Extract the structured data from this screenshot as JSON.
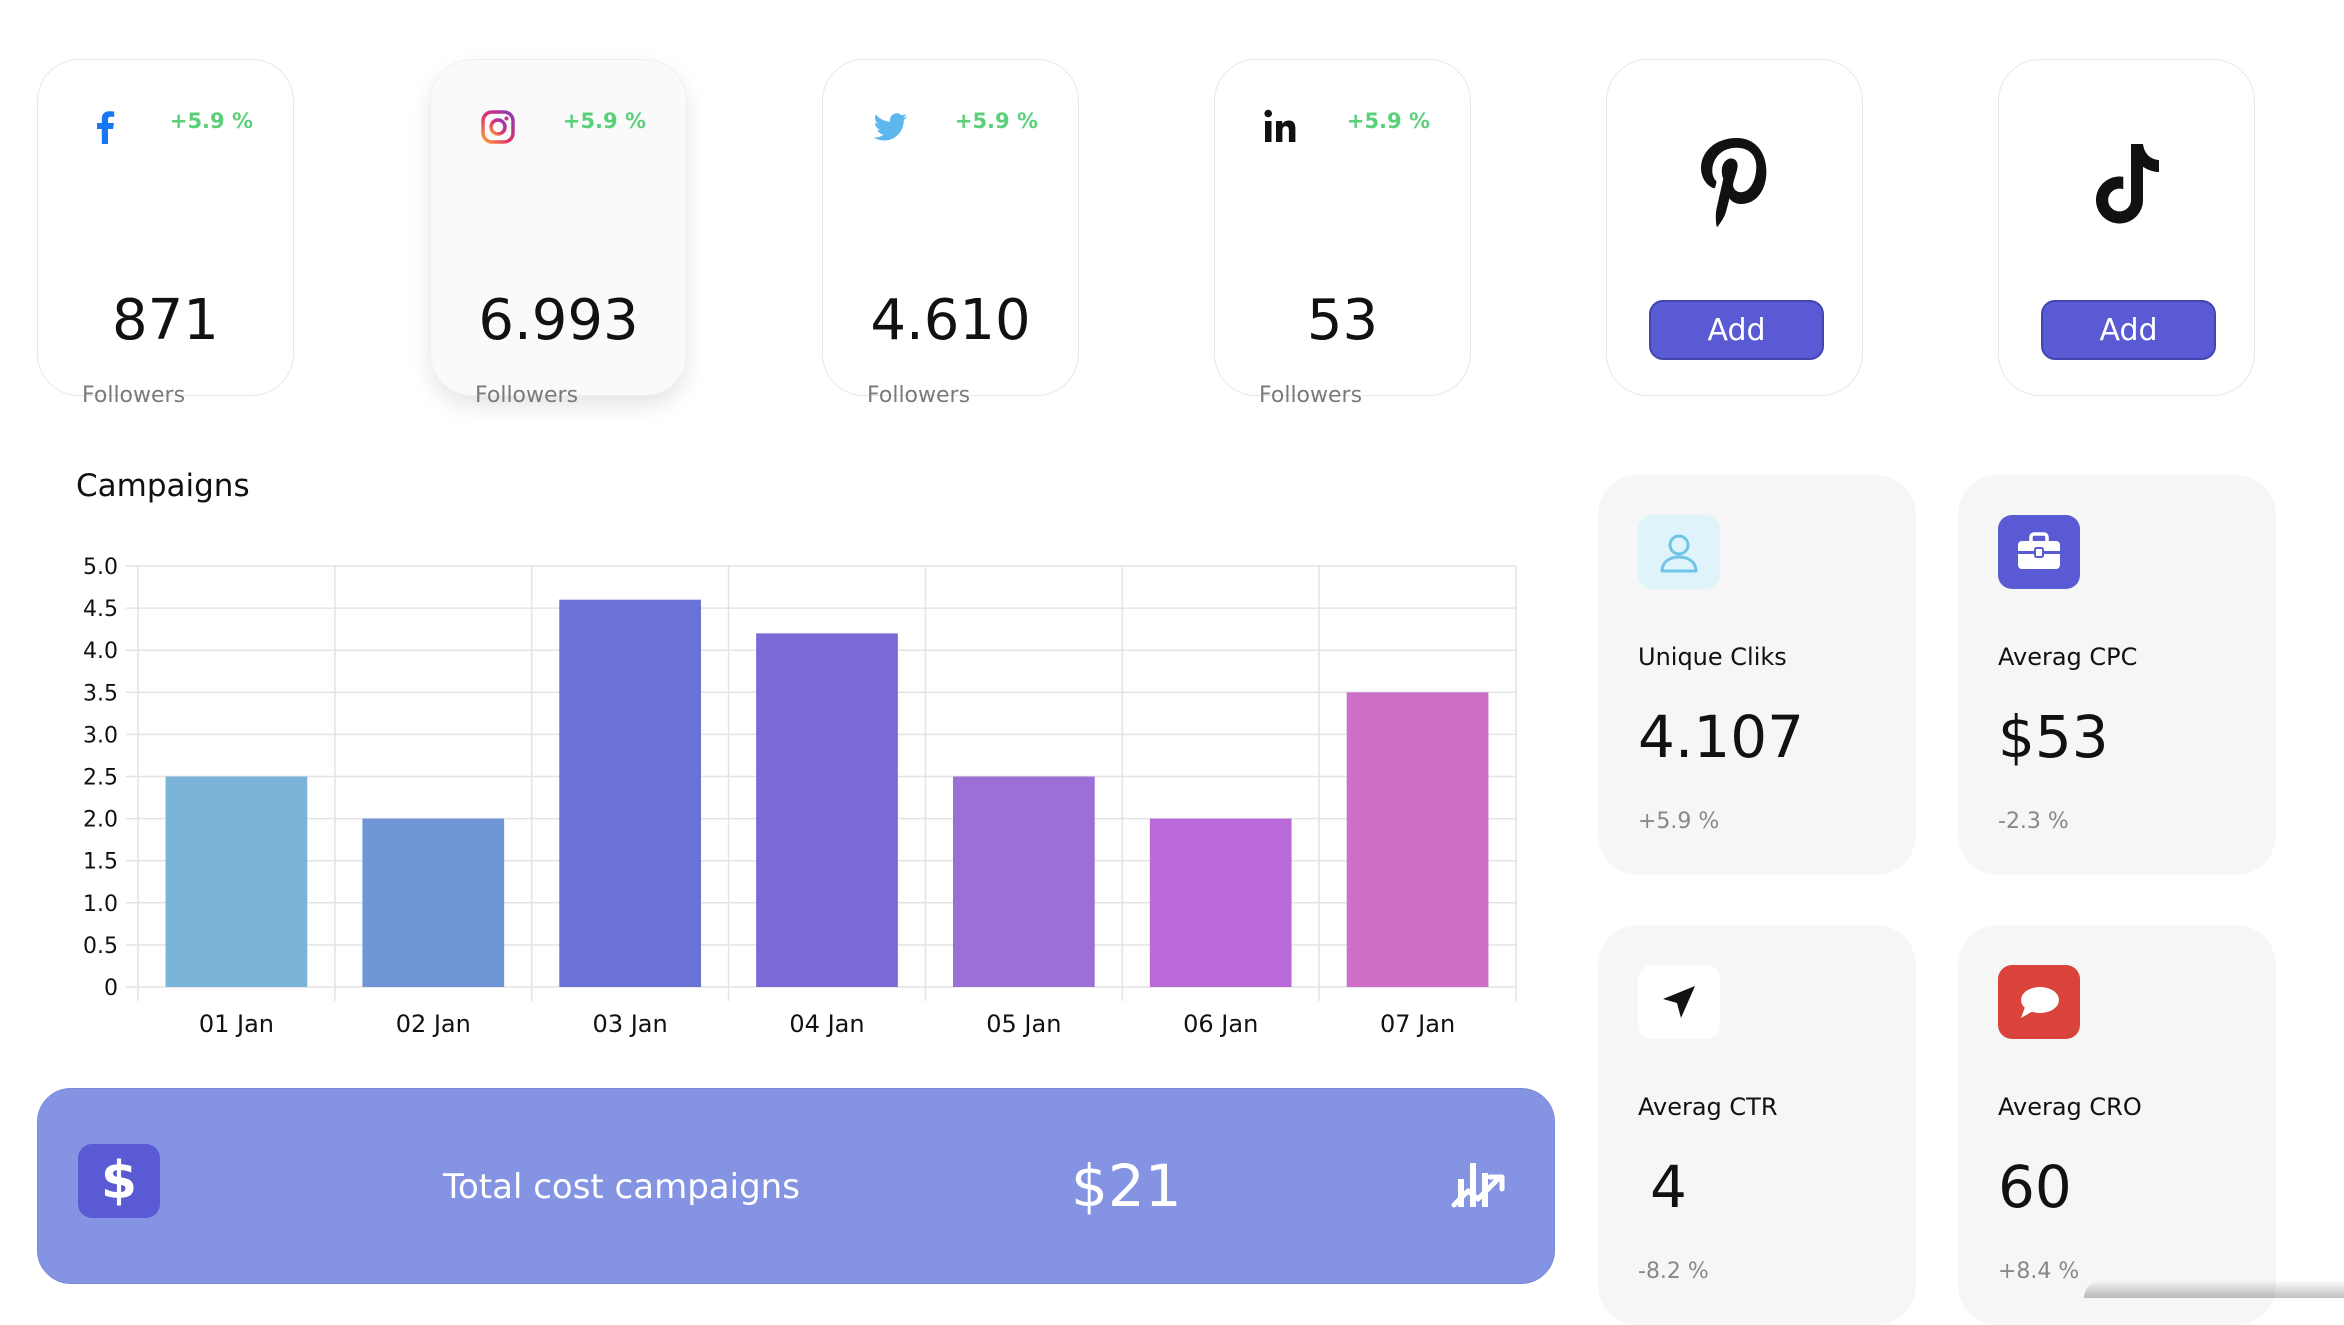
{
  "social_cards": [
    {
      "id": "facebook",
      "change": "+5.9 %",
      "value": "871",
      "label": "Followers"
    },
    {
      "id": "instagram",
      "change": "+5.9 %",
      "value": "6.993",
      "label": "Followers"
    },
    {
      "id": "twitter",
      "change": "+5.9 %",
      "value": "4.610",
      "label": "Followers"
    },
    {
      "id": "linkedin",
      "change": "+5.9 %",
      "value": "53",
      "label": "Followers"
    },
    {
      "id": "pinterest",
      "button": "Add"
    },
    {
      "id": "tiktok",
      "button": "Add"
    }
  ],
  "campaigns": {
    "title": "Campaigns"
  },
  "chart_data": {
    "type": "bar",
    "categories": [
      "01 Jan",
      "02 Jan",
      "03 Jan",
      "04 Jan",
      "05 Jan",
      "06 Jan",
      "07 Jan"
    ],
    "values": [
      2.5,
      2.0,
      4.6,
      4.2,
      2.5,
      2.0,
      3.5
    ],
    "title": "Campaigns",
    "xlabel": "",
    "ylabel": "",
    "ylim": [
      0,
      5
    ],
    "yticks": [
      "0",
      "0.5",
      "1.0",
      "1.5",
      "2.0",
      "2.5",
      "3.0",
      "3.5",
      "4.0",
      "4.5",
      "5.0"
    ],
    "grid": true,
    "colors": [
      "#7ab4d8",
      "#6f95d6",
      "#6a72d6",
      "#7b6ad6",
      "#9b6fd6",
      "#b96ad8",
      "#cd6ec7"
    ]
  },
  "total_cost": {
    "label": "Total cost campaigns",
    "value": "$21",
    "icon": "dollar-icon"
  },
  "stats": [
    {
      "id": "unique-clicks",
      "label": "Unique Cliks",
      "value": "4.107",
      "change": "+5.9 %",
      "icon": "user-icon"
    },
    {
      "id": "average-cpc",
      "label": "Averag CPC",
      "value": "$53",
      "change": "-2.3 %",
      "icon": "briefcase-icon"
    },
    {
      "id": "average-ctr",
      "label": "Averag CTR",
      "value": "4",
      "change": "-8.2 %",
      "icon": "navigation-arrow-icon"
    },
    {
      "id": "average-cro",
      "label": "Averag CRO",
      "value": "60",
      "change": "+8.4 %",
      "icon": "chat-bubble-icon"
    }
  ],
  "colors": {
    "accent": "#5a5bd4",
    "positive": "#5bd07a",
    "banner": "#8494e3",
    "facebook": "#1877f2",
    "cro": "#d9433b"
  }
}
